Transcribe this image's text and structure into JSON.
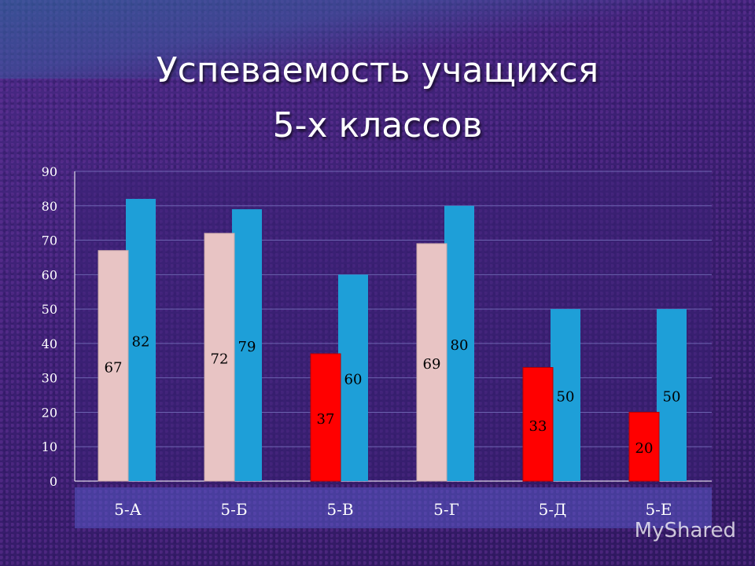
{
  "slide": {
    "title_line1": "Успеваемость учащихся",
    "title_line2": "5-х классов"
  },
  "watermark": "MyShared",
  "chart_data": {
    "type": "bar",
    "categories": [
      "5-А",
      "5-Б",
      "5-В",
      "5-Г",
      "5-Д",
      "5-Е"
    ],
    "series": [
      {
        "values": [
          67,
          72,
          37,
          69,
          33,
          20
        ],
        "color_note": "pink first bar, red for 5-В, 5-Д, 5-Е"
      },
      {
        "values": [
          82,
          79,
          60,
          80,
          50,
          50
        ],
        "color": "#1e9fd8"
      }
    ],
    "bar_colors": {
      "pink": "#e8c4c4",
      "red": "#ff0000",
      "blue": "#1e9fd8"
    },
    "first_bar_color": [
      "pink",
      "pink",
      "red",
      "pink",
      "red",
      "red"
    ],
    "ylim": [
      0,
      90
    ],
    "yticks": [
      0,
      10,
      20,
      30,
      40,
      50,
      60,
      70,
      80,
      90
    ],
    "grid": true,
    "legend": "none",
    "data_label_color": "#000000"
  }
}
